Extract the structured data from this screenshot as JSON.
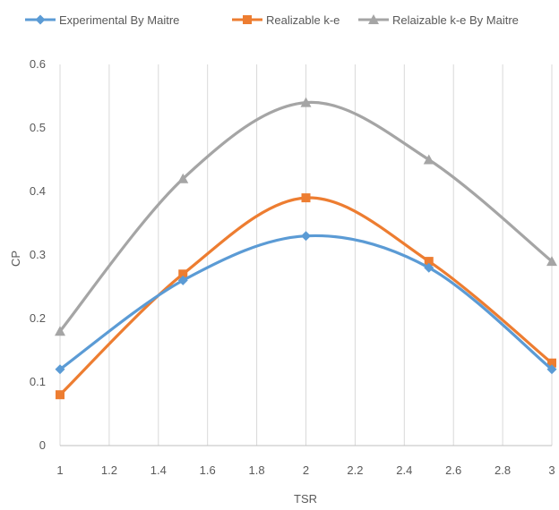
{
  "chart_data": {
    "type": "line",
    "title": "",
    "xlabel": "TSR",
    "ylabel": "CP",
    "xlim": [
      1,
      3
    ],
    "ylim": [
      0,
      0.6
    ],
    "xticks": [
      "1",
      "1.2",
      "1.4",
      "1.6",
      "1.8",
      "2",
      "2.2",
      "2.4",
      "2.6",
      "2.8",
      "3"
    ],
    "yticks": [
      "0",
      "0.1",
      "0.2",
      "0.3",
      "0.4",
      "0.5",
      "0.6"
    ],
    "grid": "vertical",
    "legend_position": "top",
    "smooth": true,
    "series": [
      {
        "name": "Experimental By Maitre",
        "color": "#5B9BD5",
        "marker": "diamond",
        "x": [
          1,
          1.5,
          2,
          2.5,
          3
        ],
        "y": [
          0.12,
          0.26,
          0.33,
          0.28,
          0.12
        ]
      },
      {
        "name": "Realizable k-e",
        "color": "#ED7D31",
        "marker": "square",
        "x": [
          1,
          1.5,
          2,
          2.5,
          3
        ],
        "y": [
          0.08,
          0.27,
          0.39,
          0.29,
          0.13
        ]
      },
      {
        "name": "Relaizable k-e By Maitre",
        "color": "#A5A5A5",
        "marker": "triangle",
        "x": [
          1,
          1.5,
          2,
          2.5,
          3
        ],
        "y": [
          0.18,
          0.42,
          0.54,
          0.45,
          0.29
        ]
      }
    ]
  }
}
